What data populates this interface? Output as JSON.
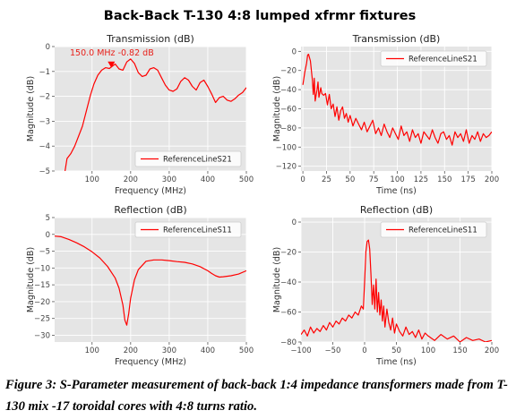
{
  "figure": {
    "suptitle": "Back-Back T-130 4:8 lumped xfrmr fixtures",
    "caption": "Figure 3: S-Parameter measurement of back-back 1:4 impedance transformers made from T-130 mix -17 toroidal cores with 4:8 turns ratio."
  },
  "colors": {
    "line": "#ff0000",
    "panel_bg": "#e5e5e5",
    "grid": "#ffffff"
  },
  "chart_data": [
    {
      "id": "s21_freq",
      "type": "line",
      "title": "Transmission (dB)",
      "xlabel": "Frequency (MHz)",
      "ylabel": "Magnitude (dB)",
      "xlim": [
        3,
        500
      ],
      "ylim": [
        -5,
        0
      ],
      "xticks": [
        100,
        200,
        300,
        400,
        500
      ],
      "yticks": [
        0,
        -1,
        -2,
        -3,
        -4,
        -5
      ],
      "grid": true,
      "legend": {
        "label": "ReferenceLineS21",
        "position": "bottom-right"
      },
      "annotation": {
        "text": "150.0  MHz  -0.82  dB",
        "x": 150,
        "y": -0.82
      },
      "series": [
        {
          "name": "ReferenceLineS21",
          "x": [
            30,
            35,
            45,
            55,
            65,
            75,
            85,
            95,
            105,
            115,
            125,
            135,
            145,
            150,
            160,
            170,
            180,
            190,
            200,
            210,
            220,
            230,
            240,
            250,
            260,
            270,
            280,
            290,
            300,
            310,
            320,
            330,
            340,
            350,
            360,
            370,
            380,
            390,
            400,
            410,
            420,
            430,
            440,
            450,
            460,
            470,
            480,
            490,
            500
          ],
          "y": [
            -5.0,
            -4.5,
            -4.3,
            -4.0,
            -3.6,
            -3.2,
            -2.6,
            -2.0,
            -1.5,
            -1.15,
            -0.95,
            -0.85,
            -0.88,
            -0.82,
            -0.7,
            -0.9,
            -0.95,
            -0.62,
            -0.5,
            -0.68,
            -1.05,
            -1.2,
            -1.15,
            -0.9,
            -0.85,
            -0.95,
            -1.25,
            -1.55,
            -1.75,
            -1.8,
            -1.7,
            -1.4,
            -1.25,
            -1.35,
            -1.6,
            -1.75,
            -1.45,
            -1.35,
            -1.6,
            -1.9,
            -2.25,
            -2.05,
            -2.0,
            -2.15,
            -2.2,
            -2.1,
            -1.95,
            -1.85,
            -1.65
          ]
        }
      ]
    },
    {
      "id": "s21_time",
      "type": "line",
      "title": "Transmission (dB)",
      "xlabel": "Time (ns)",
      "ylabel": "Magnitude (dB)",
      "xlim": [
        -2,
        200
      ],
      "ylim": [
        -125,
        5
      ],
      "xticks": [
        0,
        25,
        50,
        75,
        100,
        125,
        150,
        175,
        200
      ],
      "yticks": [
        0,
        -20,
        -40,
        -60,
        -80,
        -100,
        -120
      ],
      "grid": true,
      "legend": {
        "label": "ReferenceLineS21",
        "position": "top-right"
      },
      "series": [
        {
          "name": "ReferenceLineS21",
          "x": [
            0,
            2,
            4,
            5,
            6,
            8,
            10,
            11,
            12,
            13,
            15,
            16,
            17,
            19,
            20,
            22,
            24,
            26,
            28,
            30,
            32,
            34,
            36,
            38,
            40,
            42,
            44,
            46,
            48,
            50,
            53,
            56,
            59,
            62,
            65,
            68,
            71,
            74,
            77,
            80,
            83,
            86,
            89,
            92,
            95,
            98,
            101,
            104,
            107,
            110,
            113,
            116,
            119,
            122,
            125,
            128,
            131,
            134,
            137,
            140,
            143,
            146,
            149,
            152,
            155,
            158,
            161,
            164,
            167,
            170,
            173,
            176,
            179,
            182,
            185,
            188,
            191,
            194,
            197,
            200
          ],
          "y": [
            -35,
            -22,
            -12,
            -4,
            -3,
            -10,
            -30,
            -45,
            -28,
            -52,
            -40,
            -32,
            -48,
            -38,
            -44,
            -46,
            -44,
            -56,
            -45,
            -60,
            -55,
            -68,
            -58,
            -72,
            -62,
            -58,
            -70,
            -65,
            -74,
            -67,
            -78,
            -70,
            -76,
            -82,
            -74,
            -84,
            -78,
            -72,
            -86,
            -80,
            -88,
            -76,
            -84,
            -90,
            -80,
            -86,
            -92,
            -78,
            -88,
            -84,
            -94,
            -82,
            -90,
            -86,
            -96,
            -84,
            -88,
            -92,
            -82,
            -90,
            -96,
            -86,
            -84,
            -92,
            -88,
            -98,
            -84,
            -90,
            -86,
            -94,
            -82,
            -96,
            -88,
            -92,
            -84,
            -94,
            -86,
            -90,
            -88,
            -84
          ]
        }
      ]
    },
    {
      "id": "s11_freq",
      "type": "line",
      "title": "Reflection (dB)",
      "xlabel": "Frequency (MHz)",
      "ylabel": "Magnitude (dB)",
      "xlim": [
        3,
        500
      ],
      "ylim": [
        -32,
        5
      ],
      "xticks": [
        100,
        200,
        300,
        400,
        500
      ],
      "yticks": [
        5,
        0,
        -5,
        -10,
        -15,
        -20,
        -25,
        -30
      ],
      "grid": true,
      "legend": {
        "label": "ReferenceLineS11",
        "position": "top-right"
      },
      "series": [
        {
          "name": "ReferenceLineS11",
          "x": [
            3,
            20,
            40,
            60,
            80,
            100,
            120,
            140,
            160,
            170,
            180,
            185,
            190,
            195,
            200,
            210,
            220,
            240,
            260,
            280,
            300,
            320,
            340,
            360,
            380,
            400,
            410,
            420,
            430,
            440,
            460,
            480,
            500
          ],
          "y": [
            -0.5,
            -0.7,
            -1.5,
            -2.5,
            -3.7,
            -5.2,
            -7.0,
            -9.5,
            -13.0,
            -16.0,
            -21.0,
            -25.5,
            -27.0,
            -23.5,
            -19.0,
            -13.5,
            -10.5,
            -8.0,
            -7.6,
            -7.6,
            -7.8,
            -8.1,
            -8.3,
            -8.8,
            -9.6,
            -10.8,
            -11.6,
            -12.3,
            -12.7,
            -12.6,
            -12.3,
            -11.8,
            -10.8
          ]
        }
      ]
    },
    {
      "id": "s11_time",
      "type": "line",
      "title": "Reflection (dB)",
      "xlabel": "Time (ns)",
      "ylabel": "Magnitude (dB)",
      "xlim": [
        -100,
        200
      ],
      "ylim": [
        -80,
        3
      ],
      "xticks": [
        -100,
        -50,
        0,
        50,
        100,
        150,
        200
      ],
      "yticks": [
        0,
        -20,
        -40,
        -60,
        -80
      ],
      "grid": true,
      "legend": {
        "label": "ReferenceLineS11",
        "position": "top-right"
      },
      "series": [
        {
          "name": "ReferenceLineS11",
          "x": [
            -100,
            -95,
            -90,
            -85,
            -80,
            -75,
            -70,
            -65,
            -60,
            -55,
            -50,
            -45,
            -40,
            -35,
            -30,
            -25,
            -20,
            -15,
            -10,
            -5,
            -2,
            0,
            2,
            4,
            6,
            8,
            10,
            12,
            14,
            16,
            18,
            20,
            22,
            24,
            26,
            28,
            30,
            32,
            35,
            38,
            41,
            44,
            47,
            50,
            55,
            60,
            65,
            70,
            75,
            80,
            85,
            90,
            95,
            100,
            110,
            120,
            130,
            140,
            150,
            160,
            170,
            180,
            190,
            200
          ],
          "y": [
            -75,
            -72,
            -76,
            -70,
            -74,
            -71,
            -73,
            -69,
            -72,
            -67,
            -70,
            -66,
            -68,
            -64,
            -66,
            -62,
            -64,
            -60,
            -62,
            -56,
            -58,
            -40,
            -20,
            -13,
            -12,
            -18,
            -35,
            -55,
            -42,
            -58,
            -38,
            -60,
            -47,
            -62,
            -52,
            -66,
            -56,
            -70,
            -58,
            -67,
            -72,
            -64,
            -74,
            -68,
            -73,
            -76,
            -70,
            -75,
            -73,
            -77,
            -72,
            -78,
            -74,
            -76,
            -79,
            -75,
            -78,
            -76,
            -80,
            -77,
            -79,
            -78,
            -80,
            -79
          ]
        }
      ]
    }
  ]
}
